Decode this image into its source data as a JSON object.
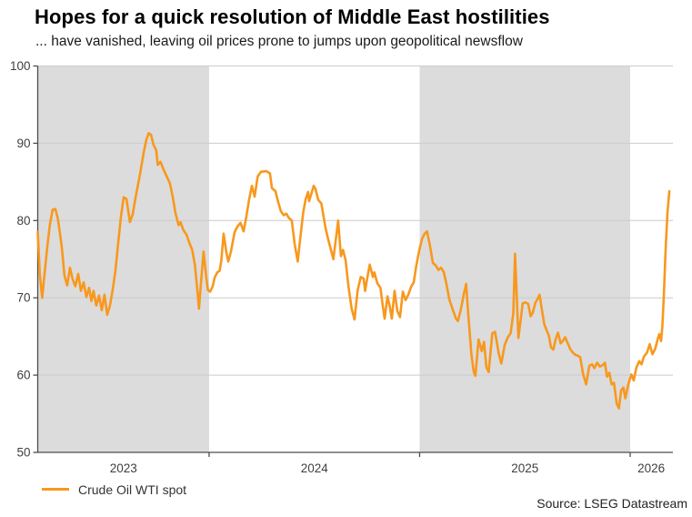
{
  "header": {
    "title": "Hopes for a quick resolution of Middle East hostilities",
    "subtitle": "... have vanished, leaving oil prices prone to jumps upon geopolitical newsflow"
  },
  "legend": {
    "label": "Crude Oil WTI spot"
  },
  "footer": {
    "source": "Source: LSEG Datastream"
  },
  "colors": {
    "line_orange": "#F8981D",
    "band_gray": "#dcdcdc",
    "grid_gray": "#cccccc",
    "axis_gray": "#4d4d4d",
    "tick_label": "#404040"
  },
  "chart_data": {
    "type": "line",
    "title": "Hopes for a quick resolution of Middle East hostilities",
    "subtitle": "... have vanished, leaving oil prices prone to jumps upon geopolitical newsflow",
    "xlabel": "",
    "ylabel": "",
    "x_unit": "decimal_year",
    "y_unit": "USD per barrel",
    "xlim": [
      2023.186,
      2026.203
    ],
    "ylim": [
      50,
      100
    ],
    "yticks": [
      50,
      60,
      70,
      80,
      90,
      100
    ],
    "xticks": [
      2024,
      2025,
      2026
    ],
    "x_year_labels": [
      {
        "label": "2023",
        "center": 2023.593
      },
      {
        "label": "2024",
        "center": 2024.5
      },
      {
        "label": "2025",
        "center": 2025.5
      },
      {
        "label": "2026",
        "center": 2026.1
      }
    ],
    "bands": [
      {
        "from": 2023.186,
        "to": 2024.0
      },
      {
        "from": 2025.0,
        "to": 2026.0
      }
    ],
    "grid": "horizontal",
    "legend_position": "bottom-left",
    "series": [
      {
        "name": "Crude Oil WTI spot",
        "points": [
          [
            2023.186,
            78.5
          ],
          [
            2023.196,
            73.0
          ],
          [
            2023.207,
            70.0
          ],
          [
            2023.218,
            73.0
          ],
          [
            2023.231,
            76.5
          ],
          [
            2023.244,
            79.5
          ],
          [
            2023.257,
            81.4
          ],
          [
            2023.27,
            81.5
          ],
          [
            2023.281,
            80.3
          ],
          [
            2023.292,
            78.3
          ],
          [
            2023.3,
            76.6
          ],
          [
            2023.313,
            72.9
          ],
          [
            2023.326,
            71.6
          ],
          [
            2023.339,
            73.9
          ],
          [
            2023.352,
            72.4
          ],
          [
            2023.365,
            71.5
          ],
          [
            2023.378,
            73.1
          ],
          [
            2023.391,
            70.9
          ],
          [
            2023.404,
            72.0
          ],
          [
            2023.417,
            70.1
          ],
          [
            2023.43,
            71.3
          ],
          [
            2023.441,
            69.6
          ],
          [
            2023.451,
            70.9
          ],
          [
            2023.464,
            69.0
          ],
          [
            2023.477,
            70.3
          ],
          [
            2023.49,
            68.4
          ],
          [
            2023.503,
            70.4
          ],
          [
            2023.516,
            67.8
          ],
          [
            2023.529,
            69.0
          ],
          [
            2023.542,
            71.0
          ],
          [
            2023.555,
            73.5
          ],
          [
            2023.568,
            77.0
          ],
          [
            2023.581,
            80.5
          ],
          [
            2023.594,
            83.0
          ],
          [
            2023.607,
            82.8
          ],
          [
            2023.624,
            79.8
          ],
          [
            2023.637,
            80.8
          ],
          [
            2023.654,
            83.5
          ],
          [
            2023.672,
            86.0
          ],
          [
            2023.689,
            88.8
          ],
          [
            2023.702,
            90.5
          ],
          [
            2023.713,
            91.3
          ],
          [
            2023.724,
            91.1
          ],
          [
            2023.736,
            89.8
          ],
          [
            2023.749,
            89.1
          ],
          [
            2023.756,
            87.2
          ],
          [
            2023.769,
            87.6
          ],
          [
            2023.784,
            86.6
          ],
          [
            2023.797,
            85.8
          ],
          [
            2023.814,
            84.8
          ],
          [
            2023.827,
            83.1
          ],
          [
            2023.84,
            81.0
          ],
          [
            2023.855,
            79.4
          ],
          [
            2023.864,
            79.8
          ],
          [
            2023.877,
            78.8
          ],
          [
            2023.892,
            78.2
          ],
          [
            2023.905,
            77.2
          ],
          [
            2023.92,
            76.2
          ],
          [
            2023.933,
            74.2
          ],
          [
            2023.944,
            71.0
          ],
          [
            2023.952,
            68.6
          ],
          [
            2023.963,
            72.5
          ],
          [
            2023.974,
            76.0
          ],
          [
            2023.985,
            73.0
          ],
          [
            2023.994,
            71.0
          ],
          [
            2024.005,
            70.8
          ],
          [
            2024.017,
            71.5
          ],
          [
            2024.026,
            72.6
          ],
          [
            2024.039,
            73.3
          ],
          [
            2024.05,
            73.5
          ],
          [
            2024.058,
            74.8
          ],
          [
            2024.069,
            78.3
          ],
          [
            2024.082,
            75.9
          ],
          [
            2024.091,
            74.7
          ],
          [
            2024.104,
            76.0
          ],
          [
            2024.121,
            78.5
          ],
          [
            2024.134,
            79.2
          ],
          [
            2024.149,
            79.7
          ],
          [
            2024.164,
            78.6
          ],
          [
            2024.177,
            80.5
          ],
          [
            2024.19,
            82.7
          ],
          [
            2024.203,
            84.5
          ],
          [
            2024.216,
            83.1
          ],
          [
            2024.231,
            85.7
          ],
          [
            2024.246,
            86.3
          ],
          [
            2024.272,
            86.4
          ],
          [
            2024.289,
            86.1
          ],
          [
            2024.298,
            84.2
          ],
          [
            2024.315,
            83.8
          ],
          [
            2024.328,
            82.4
          ],
          [
            2024.341,
            81.2
          ],
          [
            2024.354,
            80.7
          ],
          [
            2024.367,
            80.9
          ],
          [
            2024.38,
            80.3
          ],
          [
            2024.393,
            80.0
          ],
          [
            2024.406,
            77.0
          ],
          [
            2024.421,
            74.7
          ],
          [
            2024.432,
            77.5
          ],
          [
            2024.447,
            81.0
          ],
          [
            2024.458,
            82.7
          ],
          [
            2024.47,
            83.7
          ],
          [
            2024.475,
            82.5
          ],
          [
            2024.497,
            84.5
          ],
          [
            2024.505,
            84.1
          ],
          [
            2024.518,
            82.7
          ],
          [
            2024.533,
            82.2
          ],
          [
            2024.54,
            81.1
          ],
          [
            2024.554,
            78.9
          ],
          [
            2024.569,
            77.2
          ],
          [
            2024.583,
            75.8
          ],
          [
            2024.59,
            75.0
          ],
          [
            2024.613,
            80.0
          ],
          [
            2024.626,
            75.4
          ],
          [
            2024.636,
            76.2
          ],
          [
            2024.648,
            74.9
          ],
          [
            2024.662,
            71.5
          ],
          [
            2024.677,
            68.6
          ],
          [
            2024.691,
            67.2
          ],
          [
            2024.705,
            70.9
          ],
          [
            2024.72,
            72.7
          ],
          [
            2024.734,
            72.5
          ],
          [
            2024.741,
            70.9
          ],
          [
            2024.756,
            73.3
          ],
          [
            2024.763,
            74.3
          ],
          [
            2024.778,
            72.7
          ],
          [
            2024.785,
            73.3
          ],
          [
            2024.799,
            71.9
          ],
          [
            2024.814,
            71.3
          ],
          [
            2024.825,
            68.9
          ],
          [
            2024.834,
            67.3
          ],
          [
            2024.847,
            70.2
          ],
          [
            2024.858,
            68.9
          ],
          [
            2024.868,
            67.3
          ],
          [
            2024.881,
            70.9
          ],
          [
            2024.894,
            68.3
          ],
          [
            2024.907,
            67.5
          ],
          [
            2024.92,
            70.8
          ],
          [
            2024.933,
            69.7
          ],
          [
            2024.946,
            70.4
          ],
          [
            2024.959,
            71.4
          ],
          [
            2024.972,
            72.0
          ],
          [
            2024.985,
            74.3
          ],
          [
            2024.998,
            76.1
          ],
          [
            2025.011,
            77.6
          ],
          [
            2025.024,
            78.3
          ],
          [
            2025.035,
            78.6
          ],
          [
            2025.048,
            76.9
          ],
          [
            2025.063,
            74.5
          ],
          [
            2025.076,
            74.2
          ],
          [
            2025.089,
            73.6
          ],
          [
            2025.102,
            73.9
          ],
          [
            2025.115,
            73.3
          ],
          [
            2025.128,
            71.7
          ],
          [
            2025.141,
            69.8
          ],
          [
            2025.158,
            68.4
          ],
          [
            2025.173,
            67.3
          ],
          [
            2025.182,
            67.0
          ],
          [
            2025.195,
            68.4
          ],
          [
            2025.21,
            70.5
          ],
          [
            2025.221,
            71.8
          ],
          [
            2025.231,
            67.8
          ],
          [
            2025.246,
            62.7
          ],
          [
            2025.257,
            60.4
          ],
          [
            2025.265,
            59.9
          ],
          [
            2025.28,
            64.6
          ],
          [
            2025.295,
            63.1
          ],
          [
            2025.306,
            64.3
          ],
          [
            2025.317,
            61.0
          ],
          [
            2025.328,
            60.4
          ],
          [
            2025.345,
            65.4
          ],
          [
            2025.358,
            65.6
          ],
          [
            2025.369,
            63.9
          ],
          [
            2025.375,
            62.9
          ],
          [
            2025.388,
            61.5
          ],
          [
            2025.404,
            63.9
          ],
          [
            2025.419,
            64.9
          ],
          [
            2025.432,
            65.4
          ],
          [
            2025.445,
            68.0
          ],
          [
            2025.453,
            75.7
          ],
          [
            2025.469,
            64.8
          ],
          [
            2025.477,
            66.5
          ],
          [
            2025.49,
            69.3
          ],
          [
            2025.503,
            69.4
          ],
          [
            2025.516,
            69.2
          ],
          [
            2025.527,
            67.6
          ],
          [
            2025.538,
            68.1
          ],
          [
            2025.549,
            69.3
          ],
          [
            2025.559,
            69.8
          ],
          [
            2025.57,
            70.4
          ],
          [
            2025.581,
            68.4
          ],
          [
            2025.592,
            66.6
          ],
          [
            2025.603,
            65.8
          ],
          [
            2025.614,
            65.1
          ],
          [
            2025.624,
            63.6
          ],
          [
            2025.635,
            63.3
          ],
          [
            2025.646,
            64.6
          ],
          [
            2025.657,
            65.5
          ],
          [
            2025.67,
            64.1
          ],
          [
            2025.68,
            64.4
          ],
          [
            2025.691,
            64.9
          ],
          [
            2025.702,
            64.2
          ],
          [
            2025.715,
            63.4
          ],
          [
            2025.728,
            62.9
          ],
          [
            2025.741,
            62.6
          ],
          [
            2025.752,
            62.5
          ],
          [
            2025.763,
            62.3
          ],
          [
            2025.776,
            60.2
          ],
          [
            2025.791,
            58.8
          ],
          [
            2025.806,
            61.2
          ],
          [
            2025.819,
            61.4
          ],
          [
            2025.83,
            60.9
          ],
          [
            2025.843,
            61.6
          ],
          [
            2025.856,
            61.1
          ],
          [
            2025.869,
            61.3
          ],
          [
            2025.88,
            61.6
          ],
          [
            2025.89,
            59.8
          ],
          [
            2025.901,
            60.3
          ],
          [
            2025.912,
            58.8
          ],
          [
            2025.923,
            59.0
          ],
          [
            2025.936,
            56.3
          ],
          [
            2025.947,
            55.7
          ],
          [
            2025.957,
            58.0
          ],
          [
            2025.968,
            58.4
          ],
          [
            2025.977,
            57.0
          ],
          [
            2025.99,
            58.7
          ],
          [
            2026.0,
            59.6
          ],
          [
            2026.006,
            60.1
          ],
          [
            2026.017,
            59.3
          ],
          [
            2026.03,
            61.0
          ],
          [
            2026.043,
            61.8
          ],
          [
            2026.054,
            61.4
          ],
          [
            2026.065,
            62.4
          ],
          [
            2026.08,
            62.9
          ],
          [
            2026.093,
            64.0
          ],
          [
            2026.106,
            62.7
          ],
          [
            2026.119,
            63.4
          ],
          [
            2026.13,
            64.6
          ],
          [
            2026.138,
            65.3
          ],
          [
            2026.147,
            64.4
          ],
          [
            2026.153,
            66.3
          ],
          [
            2026.16,
            70.2
          ],
          [
            2026.168,
            76.0
          ],
          [
            2026.177,
            81.0
          ],
          [
            2026.186,
            83.8
          ]
        ]
      }
    ]
  }
}
